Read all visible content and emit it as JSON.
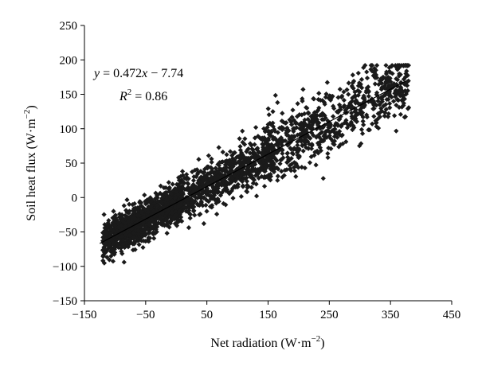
{
  "chart_data": {
    "type": "scatter",
    "title": "",
    "xlabel": "Net radiation (W·m⁻²)",
    "ylabel": "Soil heat flux (W·m⁻²)",
    "xlim": [
      -150,
      450
    ],
    "ylim": [
      -150,
      250
    ],
    "x_ticks": [
      "−150",
      "−50",
      "50",
      "150",
      "250",
      "350",
      "450"
    ],
    "y_ticks": [
      "−150",
      "−100",
      "−50",
      "0",
      "50",
      "100",
      "150",
      "200",
      "250"
    ],
    "x_tick_values": [
      -150,
      -50,
      50,
      150,
      250,
      350,
      450
    ],
    "y_tick_values": [
      -150,
      -100,
      -50,
      0,
      50,
      100,
      150,
      200,
      250
    ],
    "grid": false,
    "marker": "diamond",
    "marker_color": "#1a1a1a",
    "point_count": 2600,
    "x_range_observed": [
      -125,
      380
    ],
    "fit": {
      "slope": 0.472,
      "intercept": -7.74,
      "x_range": [
        -125,
        375
      ]
    },
    "annotations": {
      "equation": "y = 0.472x − 7.74",
      "r2": "R2 = 0.86"
    }
  }
}
